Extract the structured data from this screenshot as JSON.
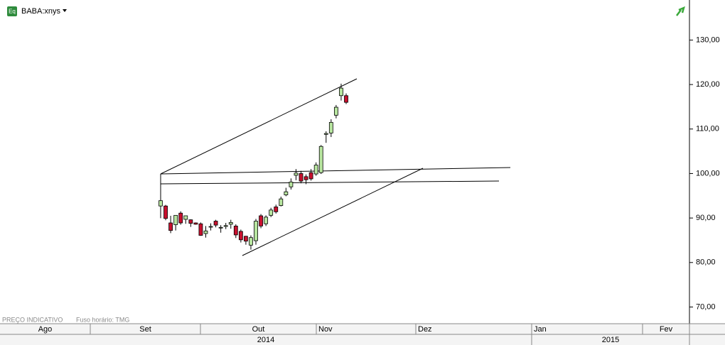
{
  "chart_data": {
    "type": "candlestick",
    "title": "BABA:xnys",
    "notes": [
      "PREÇO INDICATIVO",
      "Fuso horário: TMG"
    ],
    "months": [
      "Ago",
      "Set",
      "Out",
      "Nov",
      "Dez",
      "Jan",
      "Fev"
    ],
    "years": [
      "2014",
      "2015"
    ],
    "open": [
      92.7,
      92.7,
      88.9,
      88.5,
      91.1,
      89.7,
      89.6,
      88.9,
      88.7,
      86.5,
      88.0,
      89.3,
      87.8,
      88.1,
      88.6,
      88.2,
      87.0,
      85.9,
      83.9,
      84.9,
      90.5,
      88.7,
      90.6,
      92.5,
      92.8,
      95.2,
      97.0,
      99.6,
      100.0,
      99.3,
      100.2,
      99.9,
      100.2,
      108.8,
      109.1,
      113.1,
      117.5,
      117.5
    ],
    "high": [
      99.7,
      92.95,
      90.5,
      90.6,
      91.5,
      90.5,
      89.7,
      89.0,
      89.0,
      88.2,
      88.8,
      89.6,
      88.4,
      88.9,
      89.6,
      88.6,
      87.4,
      86.0,
      86.1,
      89.8,
      90.9,
      90.6,
      92.3,
      93.0,
      94.8,
      96.8,
      98.9,
      101.0,
      100.6,
      99.8,
      101.0,
      102.5,
      106.4,
      109.5,
      112.2,
      115.4,
      120.2,
      118.0
    ],
    "low": [
      89.95,
      89.5,
      86.6,
      87.2,
      88.5,
      88.7,
      88.0,
      88.5,
      86.0,
      85.6,
      87.2,
      87.9,
      86.7,
      87.5,
      87.6,
      85.5,
      84.5,
      84.0,
      82.9,
      84.0,
      87.7,
      88.2,
      90.2,
      91.0,
      92.6,
      94.9,
      96.4,
      98.5,
      97.8,
      97.6,
      98.4,
      99.5,
      99.9,
      106.9,
      108.2,
      112.4,
      116.4,
      115.6
    ],
    "close": [
      93.9,
      89.9,
      87.2,
      90.6,
      88.9,
      90.5,
      88.8,
      88.6,
      86.1,
      87.1,
      88.1,
      88.4,
      87.9,
      88.3,
      89.0,
      86.2,
      85.1,
      84.8,
      85.6,
      89.3,
      88.2,
      90.2,
      91.8,
      91.4,
      94.3,
      95.9,
      98.1,
      100.1,
      98.3,
      98.6,
      98.8,
      101.9,
      106.1,
      109.0,
      111.5,
      114.9,
      119.2,
      116.0
    ],
    "up_color": "#b8e6a0",
    "down_color": "#c8102e",
    "outline_color": "#000000",
    "ylim": [
      68,
      139
    ],
    "yticks": [
      {
        "value": 70,
        "label": "70,00"
      },
      {
        "value": 80,
        "label": "80,00"
      },
      {
        "value": 90,
        "label": "90,00"
      },
      {
        "value": 100,
        "label": "100,00"
      },
      {
        "value": 110,
        "label": "110,00"
      },
      {
        "value": 120,
        "label": "120,00"
      },
      {
        "value": 130,
        "label": "130,00"
      }
    ]
  }
}
